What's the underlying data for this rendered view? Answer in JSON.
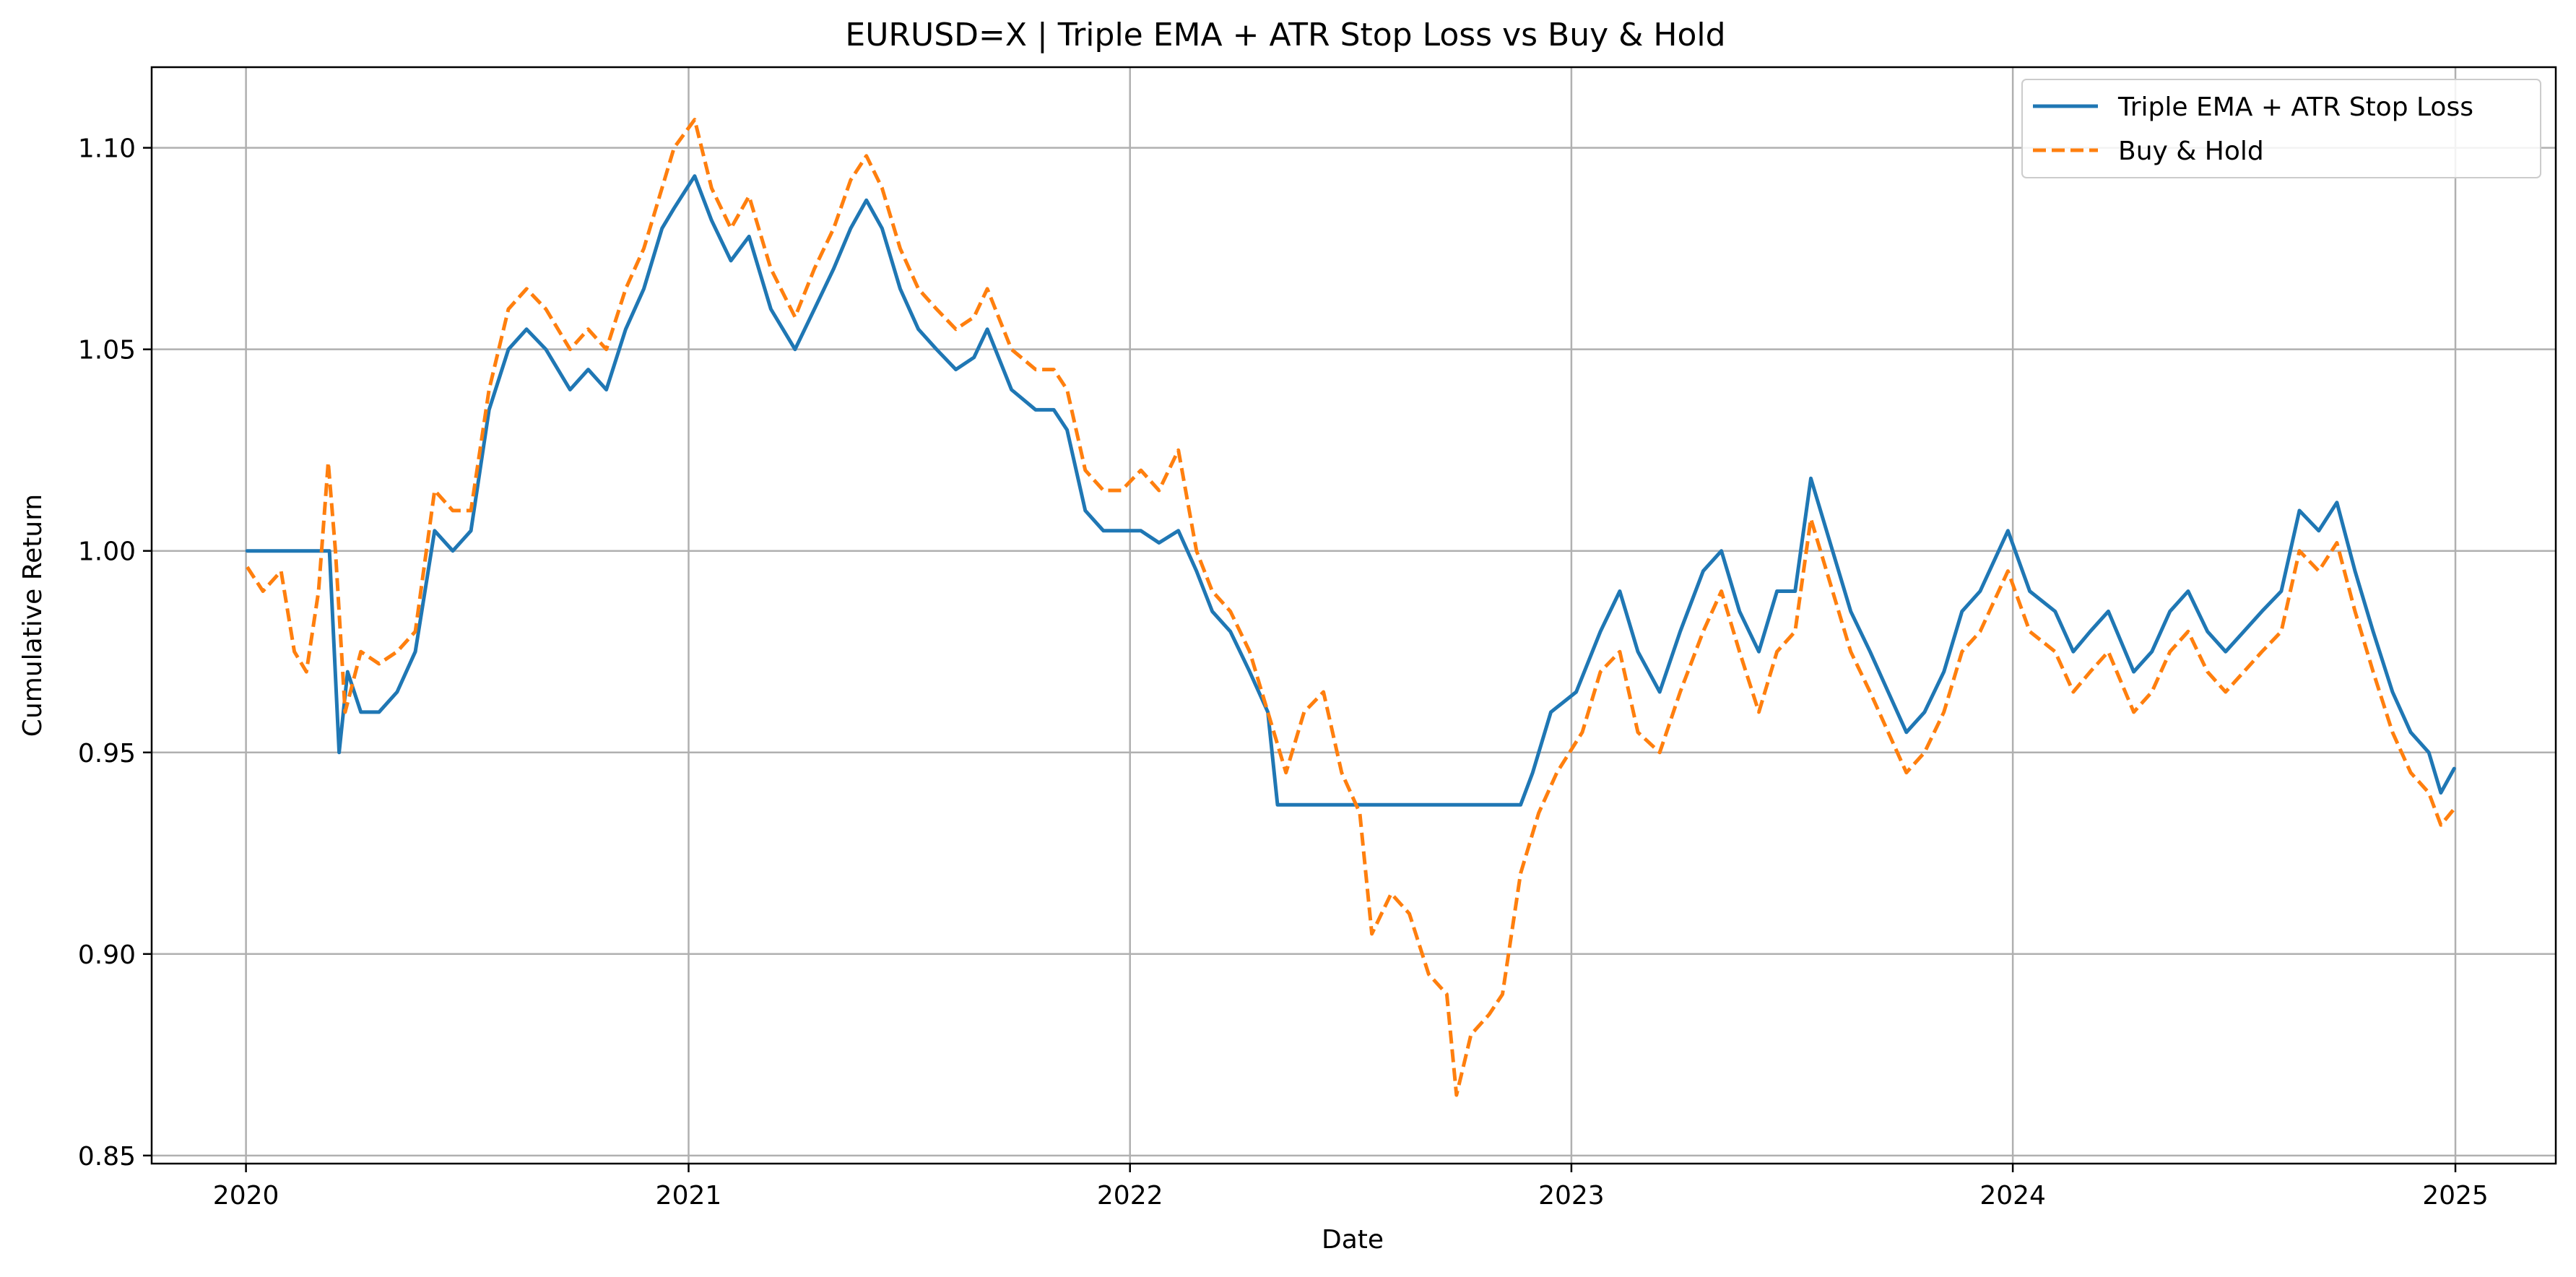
{
  "chart_data": {
    "type": "line",
    "title": "EURUSD=X | Triple EMA + ATR Stop Loss vs Buy & Hold",
    "xlabel": "Date",
    "ylabel": "Cumulative Return",
    "xlim": [
      "2019-10-15",
      "2025-03-25"
    ],
    "ylim": [
      0.848,
      1.12
    ],
    "x_ticks": [
      "2020",
      "2021",
      "2022",
      "2023",
      "2024",
      "2025"
    ],
    "y_ticks": [
      "0.85",
      "0.90",
      "0.95",
      "1.00",
      "1.05",
      "1.10"
    ],
    "grid": true,
    "legend_position": "upper right",
    "series": [
      {
        "name": "Triple EMA + ATR Stop Loss",
        "color": "#1f77b4",
        "style": "solid",
        "points": [
          [
            "2020-01-02",
            1.0
          ],
          [
            "2020-03-01",
            1.0
          ],
          [
            "2020-03-10",
            1.0
          ],
          [
            "2020-03-18",
            0.95
          ],
          [
            "2020-03-25",
            0.97
          ],
          [
            "2020-04-05",
            0.96
          ],
          [
            "2020-04-20",
            0.96
          ],
          [
            "2020-05-05",
            0.965
          ],
          [
            "2020-05-20",
            0.975
          ],
          [
            "2020-06-05",
            1.005
          ],
          [
            "2020-06-20",
            1.0
          ],
          [
            "2020-07-05",
            1.005
          ],
          [
            "2020-07-20",
            1.035
          ],
          [
            "2020-08-05",
            1.05
          ],
          [
            "2020-08-20",
            1.055
          ],
          [
            "2020-09-05",
            1.05
          ],
          [
            "2020-09-25",
            1.04
          ],
          [
            "2020-10-10",
            1.045
          ],
          [
            "2020-10-25",
            1.04
          ],
          [
            "2020-11-10",
            1.055
          ],
          [
            "2020-11-25",
            1.065
          ],
          [
            "2020-12-10",
            1.08
          ],
          [
            "2020-12-20",
            1.085
          ],
          [
            "2021-01-06",
            1.093
          ],
          [
            "2021-01-20",
            1.082
          ],
          [
            "2021-02-05",
            1.072
          ],
          [
            "2021-02-20",
            1.078
          ],
          [
            "2021-03-10",
            1.06
          ],
          [
            "2021-03-30",
            1.05
          ],
          [
            "2021-04-15",
            1.06
          ],
          [
            "2021-05-01",
            1.07
          ],
          [
            "2021-05-15",
            1.08
          ],
          [
            "2021-05-28",
            1.087
          ],
          [
            "2021-06-10",
            1.08
          ],
          [
            "2021-06-25",
            1.065
          ],
          [
            "2021-07-10",
            1.055
          ],
          [
            "2021-07-25",
            1.05
          ],
          [
            "2021-08-10",
            1.045
          ],
          [
            "2021-08-25",
            1.048
          ],
          [
            "2021-09-05",
            1.055
          ],
          [
            "2021-09-25",
            1.04
          ],
          [
            "2021-10-15",
            1.035
          ],
          [
            "2021-10-30",
            1.035
          ],
          [
            "2021-11-10",
            1.03
          ],
          [
            "2021-11-25",
            1.01
          ],
          [
            "2021-12-10",
            1.005
          ],
          [
            "2021-12-25",
            1.005
          ],
          [
            "2022-01-10",
            1.005
          ],
          [
            "2022-01-25",
            1.002
          ],
          [
            "2022-02-10",
            1.005
          ],
          [
            "2022-02-25",
            0.995
          ],
          [
            "2022-03-10",
            0.985
          ],
          [
            "2022-03-25",
            0.98
          ],
          [
            "2022-04-10",
            0.97
          ],
          [
            "2022-04-25",
            0.96
          ],
          [
            "2022-05-03",
            0.937
          ],
          [
            "2022-11-20",
            0.937
          ],
          [
            "2022-11-30",
            0.945
          ],
          [
            "2022-12-15",
            0.96
          ],
          [
            "2023-01-05",
            0.965
          ],
          [
            "2023-01-25",
            0.98
          ],
          [
            "2023-02-10",
            0.99
          ],
          [
            "2023-02-25",
            0.975
          ],
          [
            "2023-03-15",
            0.965
          ],
          [
            "2023-04-01",
            0.98
          ],
          [
            "2023-04-20",
            0.995
          ],
          [
            "2023-05-05",
            1.0
          ],
          [
            "2023-05-20",
            0.985
          ],
          [
            "2023-06-05",
            0.975
          ],
          [
            "2023-06-20",
            0.99
          ],
          [
            "2023-07-05",
            0.99
          ],
          [
            "2023-07-18",
            1.018
          ],
          [
            "2023-08-05",
            1.0
          ],
          [
            "2023-08-20",
            0.985
          ],
          [
            "2023-09-05",
            0.975
          ],
          [
            "2023-09-20",
            0.965
          ],
          [
            "2023-10-05",
            0.955
          ],
          [
            "2023-10-20",
            0.96
          ],
          [
            "2023-11-05",
            0.97
          ],
          [
            "2023-11-20",
            0.985
          ],
          [
            "2023-12-05",
            0.99
          ],
          [
            "2023-12-28",
            1.005
          ],
          [
            "2024-01-15",
            0.99
          ],
          [
            "2024-02-05",
            0.985
          ],
          [
            "2024-02-20",
            0.975
          ],
          [
            "2024-03-05",
            0.98
          ],
          [
            "2024-03-20",
            0.985
          ],
          [
            "2024-04-10",
            0.97
          ],
          [
            "2024-04-25",
            0.975
          ],
          [
            "2024-05-10",
            0.985
          ],
          [
            "2024-05-25",
            0.99
          ],
          [
            "2024-06-10",
            0.98
          ],
          [
            "2024-06-25",
            0.975
          ],
          [
            "2024-07-10",
            0.98
          ],
          [
            "2024-07-25",
            0.985
          ],
          [
            "2024-08-10",
            0.99
          ],
          [
            "2024-08-25",
            1.01
          ],
          [
            "2024-09-10",
            1.005
          ],
          [
            "2024-09-25",
            1.012
          ],
          [
            "2024-10-10",
            0.995
          ],
          [
            "2024-10-25",
            0.98
          ],
          [
            "2024-11-10",
            0.965
          ],
          [
            "2024-11-25",
            0.955
          ],
          [
            "2024-12-10",
            0.95
          ],
          [
            "2024-12-20",
            0.94
          ],
          [
            "2024-12-31",
            0.946
          ]
        ]
      },
      {
        "name": "Buy & Hold",
        "color": "#ff7f0e",
        "style": "dashed",
        "points": [
          [
            "2020-01-02",
            0.996
          ],
          [
            "2020-01-15",
            0.99
          ],
          [
            "2020-01-30",
            0.995
          ],
          [
            "2020-02-10",
            0.975
          ],
          [
            "2020-02-20",
            0.97
          ],
          [
            "2020-03-01",
            0.99
          ],
          [
            "2020-03-09",
            1.022
          ],
          [
            "2020-03-15",
            1.0
          ],
          [
            "2020-03-23",
            0.96
          ],
          [
            "2020-04-05",
            0.975
          ],
          [
            "2020-04-20",
            0.972
          ],
          [
            "2020-05-05",
            0.975
          ],
          [
            "2020-05-20",
            0.98
          ],
          [
            "2020-06-05",
            1.015
          ],
          [
            "2020-06-20",
            1.01
          ],
          [
            "2020-07-05",
            1.01
          ],
          [
            "2020-07-20",
            1.04
          ],
          [
            "2020-08-05",
            1.06
          ],
          [
            "2020-08-20",
            1.065
          ],
          [
            "2020-09-05",
            1.06
          ],
          [
            "2020-09-25",
            1.05
          ],
          [
            "2020-10-10",
            1.055
          ],
          [
            "2020-10-25",
            1.05
          ],
          [
            "2020-11-10",
            1.065
          ],
          [
            "2020-11-25",
            1.075
          ],
          [
            "2020-12-10",
            1.09
          ],
          [
            "2020-12-20",
            1.1
          ],
          [
            "2021-01-06",
            1.107
          ],
          [
            "2021-01-20",
            1.09
          ],
          [
            "2021-02-05",
            1.08
          ],
          [
            "2021-02-20",
            1.088
          ],
          [
            "2021-03-10",
            1.07
          ],
          [
            "2021-03-30",
            1.058
          ],
          [
            "2021-04-15",
            1.07
          ],
          [
            "2021-05-01",
            1.08
          ],
          [
            "2021-05-15",
            1.092
          ],
          [
            "2021-05-28",
            1.098
          ],
          [
            "2021-06-10",
            1.09
          ],
          [
            "2021-06-25",
            1.075
          ],
          [
            "2021-07-10",
            1.065
          ],
          [
            "2021-07-25",
            1.06
          ],
          [
            "2021-08-10",
            1.055
          ],
          [
            "2021-08-25",
            1.058
          ],
          [
            "2021-09-05",
            1.065
          ],
          [
            "2021-09-25",
            1.05
          ],
          [
            "2021-10-15",
            1.045
          ],
          [
            "2021-10-30",
            1.045
          ],
          [
            "2021-11-10",
            1.04
          ],
          [
            "2021-11-25",
            1.02
          ],
          [
            "2021-12-10",
            1.015
          ],
          [
            "2021-12-25",
            1.015
          ],
          [
            "2022-01-10",
            1.02
          ],
          [
            "2022-01-25",
            1.015
          ],
          [
            "2022-02-10",
            1.025
          ],
          [
            "2022-02-25",
            1.0
          ],
          [
            "2022-03-10",
            0.99
          ],
          [
            "2022-03-25",
            0.985
          ],
          [
            "2022-04-10",
            0.975
          ],
          [
            "2022-04-25",
            0.96
          ],
          [
            "2022-05-10",
            0.945
          ],
          [
            "2022-05-25",
            0.96
          ],
          [
            "2022-06-10",
            0.965
          ],
          [
            "2022-06-25",
            0.945
          ],
          [
            "2022-07-10",
            0.935
          ],
          [
            "2022-07-20",
            0.905
          ],
          [
            "2022-08-05",
            0.915
          ],
          [
            "2022-08-20",
            0.91
          ],
          [
            "2022-09-05",
            0.895
          ],
          [
            "2022-09-20",
            0.89
          ],
          [
            "2022-09-28",
            0.865
          ],
          [
            "2022-10-10",
            0.88
          ],
          [
            "2022-10-25",
            0.885
          ],
          [
            "2022-11-05",
            0.89
          ],
          [
            "2022-11-20",
            0.92
          ],
          [
            "2022-12-05",
            0.935
          ],
          [
            "2022-12-20",
            0.945
          ],
          [
            "2023-01-10",
            0.955
          ],
          [
            "2023-01-25",
            0.97
          ],
          [
            "2023-02-10",
            0.975
          ],
          [
            "2023-02-25",
            0.955
          ],
          [
            "2023-03-15",
            0.95
          ],
          [
            "2023-04-01",
            0.965
          ],
          [
            "2023-04-20",
            0.98
          ],
          [
            "2023-05-05",
            0.99
          ],
          [
            "2023-05-20",
            0.975
          ],
          [
            "2023-06-05",
            0.96
          ],
          [
            "2023-06-20",
            0.975
          ],
          [
            "2023-07-05",
            0.98
          ],
          [
            "2023-07-18",
            1.008
          ],
          [
            "2023-08-05",
            0.99
          ],
          [
            "2023-08-20",
            0.975
          ],
          [
            "2023-09-05",
            0.965
          ],
          [
            "2023-09-20",
            0.955
          ],
          [
            "2023-10-05",
            0.945
          ],
          [
            "2023-10-20",
            0.95
          ],
          [
            "2023-11-05",
            0.96
          ],
          [
            "2023-11-20",
            0.975
          ],
          [
            "2023-12-05",
            0.98
          ],
          [
            "2023-12-28",
            0.995
          ],
          [
            "2024-01-15",
            0.98
          ],
          [
            "2024-02-05",
            0.975
          ],
          [
            "2024-02-20",
            0.965
          ],
          [
            "2024-03-05",
            0.97
          ],
          [
            "2024-03-20",
            0.975
          ],
          [
            "2024-04-10",
            0.96
          ],
          [
            "2024-04-25",
            0.965
          ],
          [
            "2024-05-10",
            0.975
          ],
          [
            "2024-05-25",
            0.98
          ],
          [
            "2024-06-10",
            0.97
          ],
          [
            "2024-06-25",
            0.965
          ],
          [
            "2024-07-10",
            0.97
          ],
          [
            "2024-07-25",
            0.975
          ],
          [
            "2024-08-10",
            0.98
          ],
          [
            "2024-08-25",
            1.0
          ],
          [
            "2024-09-10",
            0.995
          ],
          [
            "2024-09-25",
            1.002
          ],
          [
            "2024-10-10",
            0.985
          ],
          [
            "2024-10-25",
            0.97
          ],
          [
            "2024-11-10",
            0.955
          ],
          [
            "2024-11-25",
            0.945
          ],
          [
            "2024-12-10",
            0.94
          ],
          [
            "2024-12-20",
            0.932
          ],
          [
            "2024-12-31",
            0.936
          ]
        ]
      }
    ]
  }
}
